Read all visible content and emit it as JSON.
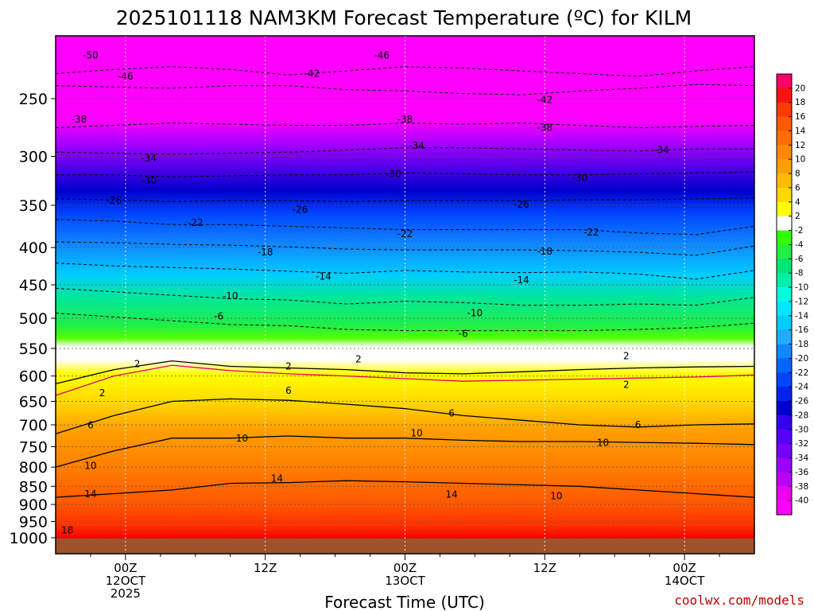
{
  "chart_data": {
    "type": "heatmap",
    "title": "2025101118 NAM3KM Forecast Temperature (ºC) for KILM",
    "xlabel": "Forecast Time (UTC)",
    "ylabel": "",
    "y_scale": "log-pressure",
    "y_ticks": [
      250,
      300,
      350,
      400,
      450,
      500,
      550,
      600,
      650,
      700,
      750,
      800,
      850,
      900,
      950,
      1000
    ],
    "x_ticks": [
      {
        "line1": "00Z",
        "line2": "12OCT",
        "line3": "2025"
      },
      {
        "line1": "12Z",
        "line2": "",
        "line3": ""
      },
      {
        "line1": "00Z",
        "line2": "13OCT",
        "line3": ""
      },
      {
        "line1": "12Z",
        "line2": "",
        "line3": ""
      },
      {
        "line1": "00Z",
        "line2": "14OCT",
        "line3": ""
      }
    ],
    "x_range_hours": [
      -6,
      54
    ],
    "x_tick_hours": [
      0,
      12,
      24,
      36,
      48
    ],
    "colorbar_ticks": [
      20,
      18,
      16,
      14,
      12,
      10,
      8,
      6,
      4,
      2,
      -2,
      -4,
      -6,
      -8,
      -10,
      -12,
      -14,
      -16,
      -18,
      -20,
      -22,
      -24,
      -26,
      -28,
      -30,
      -32,
      -34,
      -36,
      -38,
      -40
    ],
    "colorbar_colors": [
      "#ff0066",
      "#ff1111",
      "#ff3b00",
      "#ff5a00",
      "#ff7000",
      "#ff8800",
      "#ffa000",
      "#ffbb00",
      "#ffd800",
      "#ffff00",
      "#ffffff",
      "#33ff00",
      "#22ee44",
      "#00e675",
      "#00f0a8",
      "#00ffe0",
      "#00e6ff",
      "#00ccff",
      "#22aaff",
      "#1188ff",
      "#0066ff",
      "#0044ff",
      "#0022ee",
      "#0000cc",
      "#3300ee",
      "#5500ff",
      "#7700ff",
      "#9900ff",
      "#bb00ff",
      "#ee00ee",
      "#ff00ff"
    ],
    "isotherms": [
      {
        "temp": -46,
        "p": [
          231,
          228,
          226,
          228,
          232,
          229,
          226,
          227,
          229,
          231,
          233,
          229,
          226
        ]
      },
      {
        "temp": -42,
        "p": [
          240,
          241,
          242,
          240,
          240,
          243,
          244,
          246,
          247,
          244,
          242,
          239,
          240
        ]
      },
      {
        "temp": -38,
        "p": [
          274,
          272,
          270,
          271,
          272,
          272,
          270,
          271,
          270,
          272,
          274,
          273,
          272
        ]
      },
      {
        "temp": -34,
        "p": [
          296,
          297,
          298,
          297,
          296,
          294,
          292,
          292,
          293,
          294,
          295,
          293,
          293
        ]
      },
      {
        "temp": -30,
        "p": [
          318,
          318,
          320,
          319,
          318,
          318,
          316,
          317,
          318,
          318,
          317,
          316,
          315
        ]
      },
      {
        "temp": -26,
        "p": [
          343,
          344,
          346,
          345,
          345,
          346,
          345,
          345,
          345,
          344,
          344,
          343,
          342
        ]
      },
      {
        "temp": -22,
        "p": [
          366,
          368,
          372,
          372,
          374,
          376,
          378,
          378,
          378,
          378,
          382,
          384,
          374
        ]
      },
      {
        "temp": -18,
        "p": [
          393,
          394,
          396,
          397,
          399,
          402,
          403,
          403,
          403,
          404,
          406,
          410,
          398
        ]
      },
      {
        "temp": -14,
        "p": [
          420,
          424,
          426,
          428,
          431,
          434,
          430,
          432,
          433,
          432,
          435,
          442,
          430
        ]
      },
      {
        "temp": -10,
        "p": [
          455,
          460,
          465,
          470,
          472,
          478,
          474,
          476,
          480,
          480,
          478,
          480,
          468
        ]
      },
      {
        "temp": -6,
        "p": [
          492,
          498,
          504,
          510,
          512,
          518,
          520,
          520,
          520,
          520,
          518,
          515,
          508
        ]
      },
      {
        "temp": 2,
        "p": [
          615,
          588,
          572,
          582,
          585,
          588,
          594,
          596,
          592,
          588,
          585,
          583,
          582
        ]
      },
      {
        "temp": 2,
        "p": [
          638,
          600,
          580,
          590,
          596,
          600,
          605,
          610,
          608,
          606,
          604,
          602,
          598
        ]
      },
      {
        "temp": 6,
        "p": [
          720,
          680,
          650,
          645,
          648,
          656,
          665,
          680,
          690,
          700,
          705,
          700,
          698
        ]
      },
      {
        "temp": 10,
        "p": [
          800,
          760,
          730,
          730,
          725,
          730,
          730,
          735,
          738,
          738,
          740,
          742,
          745
        ]
      },
      {
        "temp": 14,
        "p": [
          880,
          870,
          860,
          842,
          840,
          835,
          838,
          842,
          846,
          850,
          860,
          870,
          880
        ]
      }
    ],
    "isotherm_labels": [
      {
        "text": "-50",
        "t": -3,
        "p": 218
      },
      {
        "text": "-46",
        "t": 22,
        "p": 218
      },
      {
        "text": "-46",
        "t": 0,
        "p": 233
      },
      {
        "text": "-42",
        "t": 16,
        "p": 231
      },
      {
        "text": "-42",
        "t": 36,
        "p": 251
      },
      {
        "text": "-38",
        "t": -4,
        "p": 267
      },
      {
        "text": "-38",
        "t": 24,
        "p": 267
      },
      {
        "text": "-38",
        "t": 36,
        "p": 274
      },
      {
        "text": "-34",
        "t": 2,
        "p": 302
      },
      {
        "text": "-34",
        "t": 25,
        "p": 290
      },
      {
        "text": "-34",
        "t": 46,
        "p": 294
      },
      {
        "text": "-30",
        "t": 2,
        "p": 324
      },
      {
        "text": "-30",
        "t": 23,
        "p": 317
      },
      {
        "text": "-30",
        "t": 39,
        "p": 321
      },
      {
        "text": "-26",
        "t": -1,
        "p": 345
      },
      {
        "text": "-26",
        "t": 15,
        "p": 355
      },
      {
        "text": "-26",
        "t": 34,
        "p": 349
      },
      {
        "text": "-22",
        "t": 6,
        "p": 370
      },
      {
        "text": "-22",
        "t": 24,
        "p": 383
      },
      {
        "text": "-22",
        "t": 40,
        "p": 381
      },
      {
        "text": "-18",
        "t": 12,
        "p": 406
      },
      {
        "text": "-18",
        "t": 36,
        "p": 405
      },
      {
        "text": "-14",
        "t": 17,
        "p": 438
      },
      {
        "text": "-14",
        "t": 34,
        "p": 443
      },
      {
        "text": "-10",
        "t": 9,
        "p": 466
      },
      {
        "text": "-10",
        "t": 30,
        "p": 492
      },
      {
        "text": "-6",
        "t": 8,
        "p": 497
      },
      {
        "text": "-6",
        "t": 29,
        "p": 525
      },
      {
        "text": "2",
        "t": 1,
        "p": 578
      },
      {
        "text": "2",
        "t": 20,
        "p": 569
      },
      {
        "text": "2",
        "t": 14,
        "p": 582
      },
      {
        "text": "2",
        "t": 43,
        "p": 563
      },
      {
        "text": "2",
        "t": 43,
        "p": 617
      },
      {
        "text": "2",
        "t": -2,
        "p": 633
      },
      {
        "text": "6",
        "t": -3,
        "p": 701
      },
      {
        "text": "6",
        "t": 14,
        "p": 628
      },
      {
        "text": "6",
        "t": 28,
        "p": 675
      },
      {
        "text": "6",
        "t": 44,
        "p": 700
      },
      {
        "text": "10",
        "t": -3,
        "p": 797
      },
      {
        "text": "10",
        "t": 10,
        "p": 731
      },
      {
        "text": "10",
        "t": 25,
        "p": 719
      },
      {
        "text": "10",
        "t": 41,
        "p": 741
      },
      {
        "text": "10",
        "t": 37,
        "p": 876
      },
      {
        "text": "14",
        "t": -3,
        "p": 871
      },
      {
        "text": "14",
        "t": 13,
        "p": 829
      },
      {
        "text": "14",
        "t": 28,
        "p": 872
      },
      {
        "text": "18",
        "t": -5,
        "p": 977
      }
    ]
  },
  "credit": "coolwx.com/models"
}
